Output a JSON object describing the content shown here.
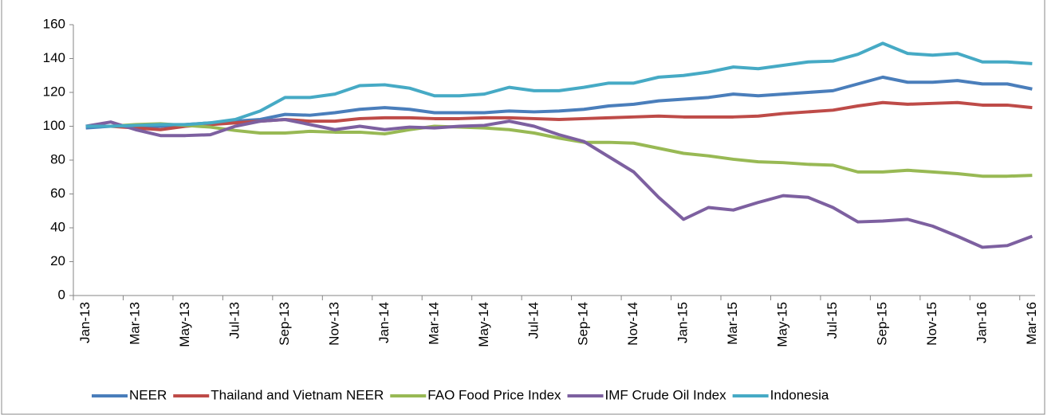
{
  "chart_data": {
    "type": "line",
    "categories": [
      "Jan-13",
      null,
      "Mar-13",
      null,
      "May-13",
      null,
      "Jul-13",
      null,
      "Sep-13",
      null,
      "Nov-13",
      null,
      "Jan-14",
      null,
      "Mar-14",
      null,
      "May-14",
      null,
      "Jul-14",
      null,
      "Sep-14",
      null,
      "Nov-14",
      null,
      "Jan-15",
      null,
      "Mar-15",
      null,
      "May-15",
      null,
      "Jul-15",
      null,
      "Sep-15",
      null,
      "Nov-15",
      null,
      "Jan-16",
      null,
      "Mar-16"
    ],
    "series": [
      {
        "name": "NEER",
        "color": "#4a7ebb",
        "values": [
          99,
          100,
          100,
          100,
          101,
          102,
          103,
          104,
          107,
          106.5,
          108,
          110,
          111,
          110,
          108,
          108,
          108,
          109,
          108.5,
          109,
          110,
          112,
          113,
          115,
          116,
          117,
          119,
          118,
          119,
          120,
          121,
          125,
          129,
          126,
          126,
          127,
          125,
          125,
          122
        ]
      },
      {
        "name": "Thailand and Vietnam NEER",
        "color": "#be4b48",
        "values": [
          100,
          100,
          99,
          98,
          100,
          101,
          102,
          103,
          104,
          103,
          103,
          104.5,
          105,
          105,
          104.5,
          104.5,
          105,
          105,
          104.5,
          104,
          104.5,
          105,
          105.5,
          106,
          105.5,
          105.5,
          105.5,
          106,
          107.5,
          108.5,
          109.5,
          112,
          114,
          113,
          113.5,
          114,
          112.5,
          112.5,
          111
        ]
      },
      {
        "name": "FAO Food Price Index",
        "color": "#98b954",
        "values": [
          100,
          100,
          101,
          101.5,
          100.5,
          99.5,
          97.5,
          96,
          96,
          97,
          96.5,
          96.5,
          95.5,
          98,
          100,
          99.5,
          99,
          98,
          96,
          93,
          90.5,
          90.5,
          90,
          87,
          84,
          82.5,
          80.5,
          79,
          78.5,
          77.5,
          77,
          73,
          73,
          74,
          73,
          72,
          70.5,
          70.5,
          71
        ]
      },
      {
        "name": "IMF Crude Oil Index",
        "color": "#7d60a0",
        "values": [
          100,
          102.5,
          98,
          94.5,
          94.5,
          95,
          100,
          103,
          104,
          101,
          98,
          100,
          98,
          99.5,
          99,
          100,
          100.5,
          103,
          100,
          95,
          91,
          82,
          73,
          58,
          45,
          52,
          50.5,
          55,
          59,
          58,
          52,
          43.5,
          44,
          45,
          41,
          35,
          28.5,
          29.5,
          35
        ]
      },
      {
        "name": "Indonesia",
        "color": "#46aac5",
        "values": [
          100,
          100,
          100.5,
          101,
          101,
          102,
          104,
          109,
          117,
          117,
          119,
          124,
          124.5,
          122.5,
          118,
          118,
          119,
          123,
          121,
          121,
          123,
          125.5,
          125.5,
          129,
          130,
          132,
          135,
          134,
          136,
          138,
          138.5,
          142.5,
          149,
          143,
          142,
          143,
          138,
          138,
          137
        ]
      }
    ],
    "ylim": [
      0,
      160
    ],
    "yticks": [
      0,
      20,
      40,
      60,
      80,
      100,
      120,
      140,
      160
    ],
    "legend": "bottom"
  }
}
